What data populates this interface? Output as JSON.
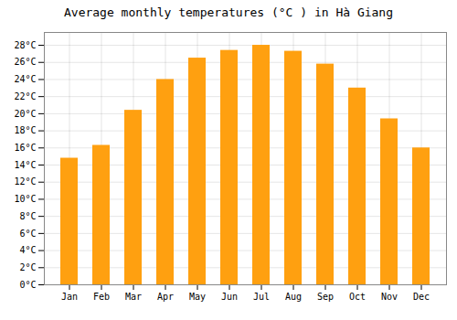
{
  "chart_data": {
    "type": "bar",
    "title": "Average monthly temperatures (°C ) in Hà Giang",
    "categories": [
      "Jan",
      "Feb",
      "Mar",
      "Apr",
      "May",
      "Jun",
      "Jul",
      "Aug",
      "Sep",
      "Oct",
      "Nov",
      "Dec"
    ],
    "values": [
      14.8,
      16.3,
      20.4,
      24.0,
      26.5,
      27.4,
      28.0,
      27.3,
      25.8,
      23.0,
      19.4,
      16.0
    ],
    "color": "#FFA010",
    "ylim": [
      0,
      29.5
    ],
    "yticks": [
      {
        "value": 0,
        "label": "0°C"
      },
      {
        "value": 2,
        "label": "2°C"
      },
      {
        "value": 4,
        "label": "4°C"
      },
      {
        "value": 6,
        "label": "6°C"
      },
      {
        "value": 8,
        "label": "8°C"
      },
      {
        "value": 10,
        "label": "10°C"
      },
      {
        "value": 12,
        "label": "12°C"
      },
      {
        "value": 14,
        "label": "14°C"
      },
      {
        "value": 16,
        "label": "16°C"
      },
      {
        "value": 18,
        "label": "18°C"
      },
      {
        "value": 20,
        "label": "20°C"
      },
      {
        "value": 22,
        "label": "22°C"
      },
      {
        "value": 24,
        "label": "24°C"
      },
      {
        "value": 26,
        "label": "26°C"
      },
      {
        "value": 28,
        "label": "28°C"
      }
    ],
    "grid": true
  }
}
